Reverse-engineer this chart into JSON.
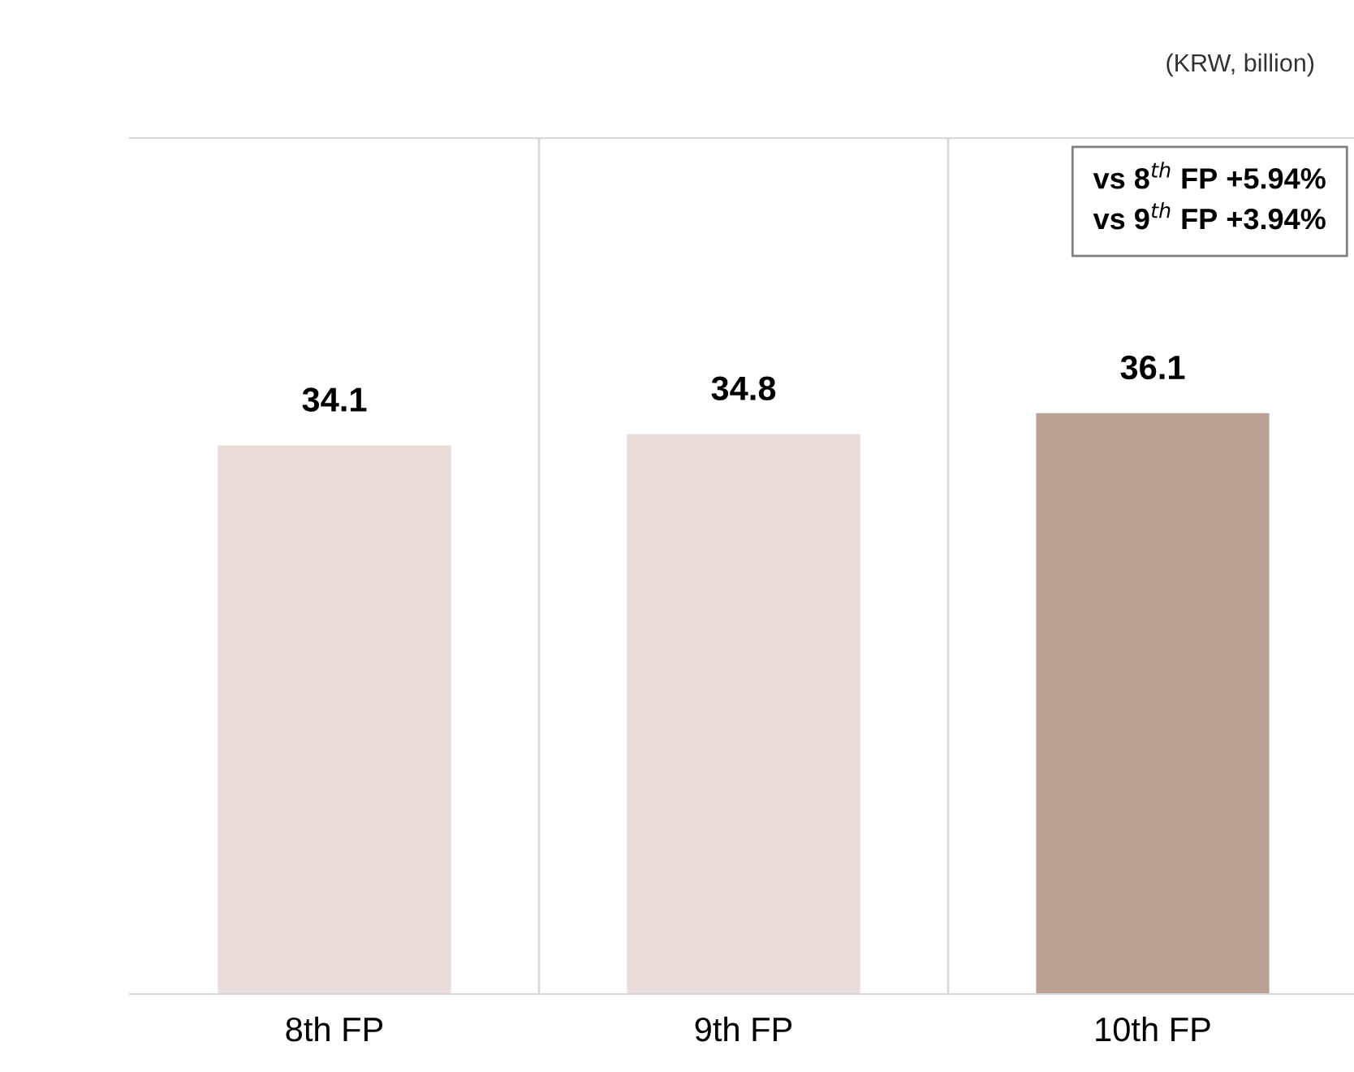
{
  "chart_data": {
    "type": "bar",
    "categories": [
      "8th FP",
      "9th FP",
      "10th FP"
    ],
    "values": [
      34.1,
      34.8,
      36.1
    ],
    "colors": [
      "#e8ddd8",
      "#e8ddd8",
      "#bba193"
    ],
    "data_labels": true,
    "ylim": [
      0,
      53.2
    ],
    "tick_labels": "x",
    "grid": "x",
    "annotations": [
      "(KRW, billion)",
      "vs 8$^{th}$ FP +5.94%\nvs 9$^{th}$ FP +3.94%"
    ]
  }
}
